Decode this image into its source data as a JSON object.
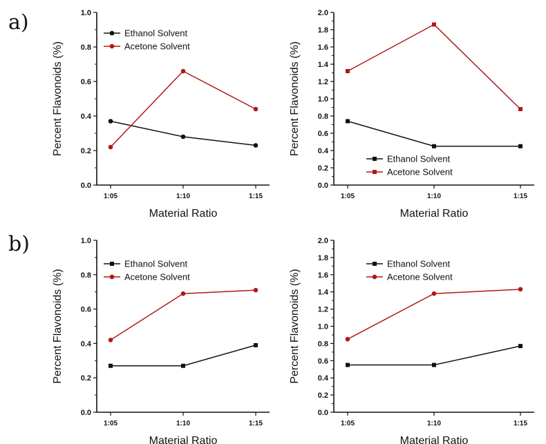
{
  "panel_labels": {
    "a": "a)",
    "b": "b)"
  },
  "colors": {
    "ethanol": "#111111",
    "acetone": "#b01818",
    "axis": "#111111"
  },
  "chart_data": [
    {
      "type": "line",
      "categories": [
        "1:05",
        "1:10",
        "1:15"
      ],
      "xlabel": "Material Ratio",
      "ylabel": "Percent Flavonoids (%)",
      "ylim": [
        0,
        1.0
      ],
      "yticks": [
        "0.0",
        "0.2",
        "0.4",
        "0.6",
        "0.8",
        "1.0"
      ],
      "legend_position": "top-left",
      "series": [
        {
          "name": "Ethanol Solvent",
          "marker": "circle",
          "values": [
            0.37,
            0.28,
            0.23
          ]
        },
        {
          "name": "Acetone Solvent",
          "marker": "circle",
          "values": [
            0.22,
            0.66,
            0.44
          ]
        }
      ]
    },
    {
      "type": "line",
      "categories": [
        "1:05",
        "1:10",
        "1:15"
      ],
      "xlabel": "Material Ratio",
      "ylabel": "Percent Flavonoids (%)",
      "ylim": [
        0,
        2.0
      ],
      "yticks": [
        "0.0",
        "0.2",
        "0.4",
        "0.6",
        "0.8",
        "1.0",
        "1.2",
        "1.4",
        "1.6",
        "1.8",
        "2.0"
      ],
      "legend_position": "bottom-left",
      "series": [
        {
          "name": "Ethanol Solvent",
          "marker": "square",
          "values": [
            0.74,
            0.45,
            0.45
          ]
        },
        {
          "name": "Acetone Solvent",
          "marker": "square",
          "values": [
            1.32,
            1.86,
            0.88
          ]
        }
      ]
    },
    {
      "type": "line",
      "categories": [
        "1:05",
        "1:10",
        "1:15"
      ],
      "xlabel": "Material Ratio",
      "ylabel": "Percent Flavonoids (%)",
      "ylim": [
        0,
        1.0
      ],
      "yticks": [
        "0.0",
        "0.2",
        "0.4",
        "0.6",
        "0.8",
        "1.0"
      ],
      "legend_position": "top-left",
      "series": [
        {
          "name": "Ethanol Solvent",
          "marker": "square",
          "values": [
            0.27,
            0.27,
            0.39
          ]
        },
        {
          "name": "Acetone Solvent",
          "marker": "circle",
          "values": [
            0.42,
            0.69,
            0.71
          ]
        }
      ]
    },
    {
      "type": "line",
      "categories": [
        "1:05",
        "1:10",
        "1:15"
      ],
      "xlabel": "Material Ratio",
      "ylabel": "Percent Flavonoids (%)",
      "ylim": [
        0,
        2.0
      ],
      "yticks": [
        "0.0",
        "0.2",
        "0.4",
        "0.6",
        "0.8",
        "1.0",
        "1.2",
        "1.4",
        "1.6",
        "1.8",
        "2.0"
      ],
      "legend_position": "top-left",
      "series": [
        {
          "name": "Ethanol Solvent",
          "marker": "square",
          "values": [
            0.55,
            0.55,
            0.77
          ]
        },
        {
          "name": "Acetone Solvent",
          "marker": "circle",
          "values": [
            0.85,
            1.38,
            1.43
          ]
        }
      ]
    }
  ]
}
